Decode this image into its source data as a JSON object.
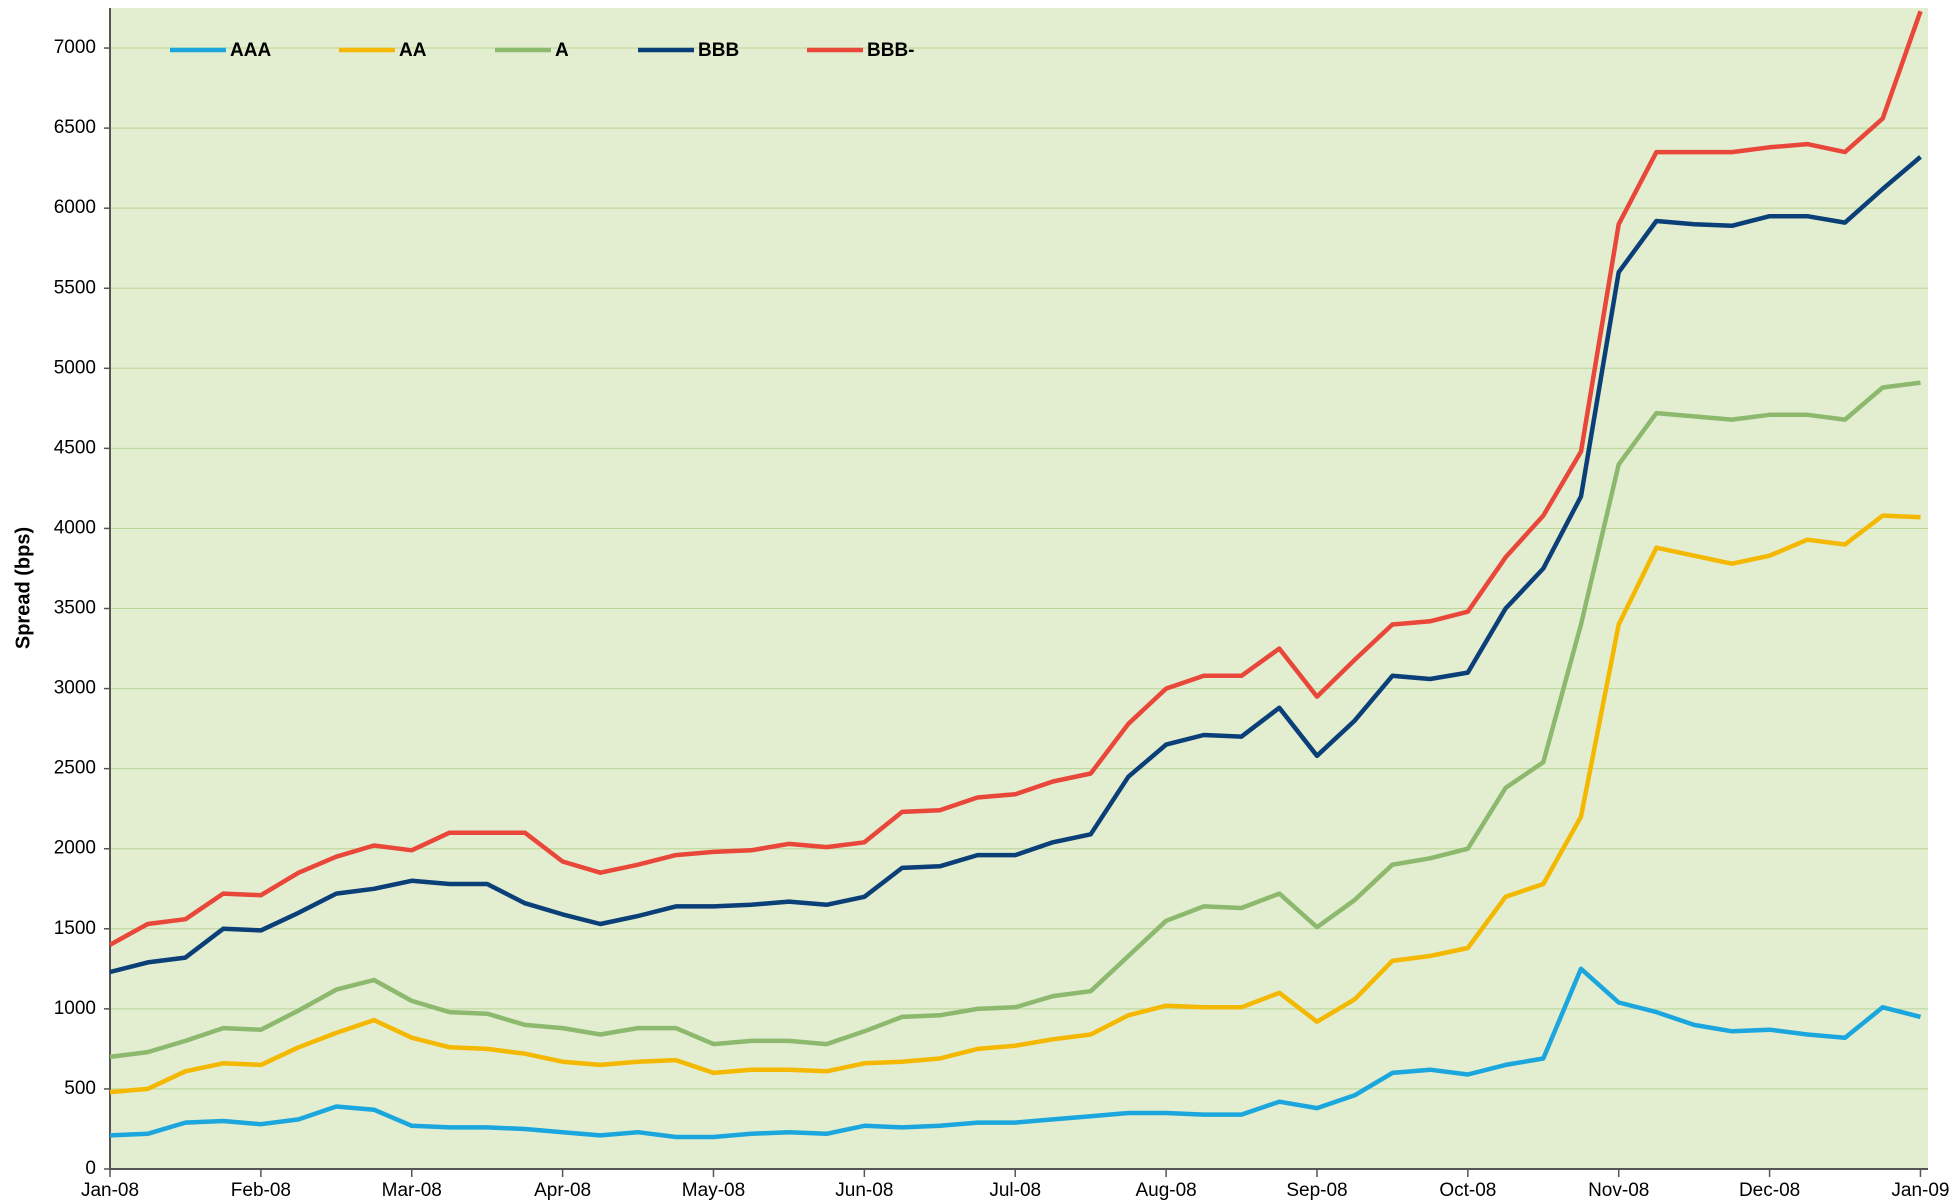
{
  "chart_data": {
    "type": "line",
    "y_label": "Spread (bps)",
    "x": [
      0,
      0.25,
      0.5,
      0.75,
      1,
      1.25,
      1.5,
      1.75,
      2,
      2.25,
      2.5,
      2.75,
      3,
      3.25,
      3.5,
      3.75,
      4,
      4.25,
      4.5,
      4.75,
      5,
      5.25,
      5.5,
      5.75,
      6,
      6.25,
      6.5,
      6.75,
      7,
      7.25,
      7.5,
      7.75,
      8,
      8.25,
      8.5,
      8.75,
      9,
      9.25,
      9.5,
      9.75,
      10,
      10.25,
      10.5,
      10.75,
      11,
      11.25,
      11.5,
      11.75,
      12
    ],
    "xlim": [
      0,
      12.05
    ],
    "xticks": [
      {
        "value": 0,
        "label": "Jan-08"
      },
      {
        "value": 1,
        "label": "Feb-08"
      },
      {
        "value": 2,
        "label": "Mar-08"
      },
      {
        "value": 3,
        "label": "Apr-08"
      },
      {
        "value": 4,
        "label": "May-08"
      },
      {
        "value": 5,
        "label": "Jun-08"
      },
      {
        "value": 6,
        "label": "Jul-08"
      },
      {
        "value": 7,
        "label": "Aug-08"
      },
      {
        "value": 8,
        "label": "Sep-08"
      },
      {
        "value": 9,
        "label": "Oct-08"
      },
      {
        "value": 10,
        "label": "Nov-08"
      },
      {
        "value": 11,
        "label": "Dec-08"
      },
      {
        "value": 12,
        "label": "Jan-09"
      }
    ],
    "ylim": [
      0,
      7250
    ],
    "yticks": [
      0,
      500,
      1000,
      1500,
      2000,
      2500,
      3000,
      3500,
      4000,
      4500,
      5000,
      5500,
      6000,
      6500,
      7000
    ],
    "grid": true,
    "legend": "top-left",
    "series": [
      {
        "name": "AAA",
        "color": "#1ba6dd",
        "values": [
          210,
          220,
          290,
          300,
          280,
          310,
          390,
          370,
          270,
          260,
          260,
          250,
          230,
          210,
          230,
          200,
          200,
          220,
          230,
          220,
          270,
          260,
          270,
          290,
          290,
          310,
          330,
          350,
          350,
          340,
          340,
          420,
          380,
          460,
          600,
          620,
          590,
          650,
          690,
          1250,
          1040,
          980,
          900,
          860,
          870,
          840,
          820,
          1010,
          950
        ]
      },
      {
        "name": "AA",
        "color": "#f4b800",
        "values": [
          480,
          500,
          610,
          660,
          650,
          760,
          850,
          930,
          820,
          760,
          750,
          720,
          670,
          650,
          670,
          680,
          600,
          620,
          620,
          610,
          660,
          670,
          690,
          750,
          770,
          810,
          840,
          960,
          1020,
          1010,
          1010,
          1100,
          920,
          1060,
          1300,
          1330,
          1380,
          1700,
          1780,
          2200,
          3400,
          3880,
          3830,
          3780,
          3830,
          3930,
          3900,
          4080,
          4070
        ]
      },
      {
        "name": "A",
        "color": "#8cb96e",
        "values": [
          700,
          730,
          800,
          880,
          870,
          990,
          1120,
          1180,
          1050,
          980,
          970,
          900,
          880,
          840,
          880,
          880,
          780,
          800,
          800,
          780,
          860,
          950,
          960,
          1000,
          1010,
          1080,
          1110,
          1330,
          1550,
          1640,
          1630,
          1720,
          1510,
          1680,
          1900,
          1940,
          2000,
          2380,
          2540,
          3400,
          4400,
          4720,
          4700,
          4680,
          4710,
          4710,
          4680,
          4880,
          4910
        ]
      },
      {
        "name": "BBB",
        "color": "#0b3f78",
        "values": [
          1230,
          1290,
          1320,
          1500,
          1490,
          1600,
          1720,
          1750,
          1800,
          1780,
          1780,
          1660,
          1590,
          1530,
          1580,
          1640,
          1640,
          1650,
          1670,
          1650,
          1700,
          1880,
          1890,
          1960,
          1960,
          2040,
          2090,
          2450,
          2650,
          2710,
          2700,
          2880,
          2580,
          2800,
          3080,
          3060,
          3100,
          3500,
          3750,
          4200,
          5600,
          5920,
          5900,
          5890,
          5950,
          5950,
          5910,
          6120,
          6320
        ]
      },
      {
        "name": "BBB-",
        "color": "#e8473a",
        "values": [
          1400,
          1530,
          1560,
          1720,
          1710,
          1850,
          1950,
          2020,
          1990,
          2100,
          2100,
          2100,
          1920,
          1850,
          1900,
          1960,
          1980,
          1990,
          2030,
          2010,
          2040,
          2230,
          2240,
          2320,
          2340,
          2420,
          2470,
          2780,
          3000,
          3080,
          3080,
          3250,
          2950,
          3180,
          3400,
          3420,
          3480,
          3820,
          4080,
          4480,
          5900,
          6350,
          6350,
          6350,
          6380,
          6400,
          6350,
          6560,
          7230
        ]
      }
    ]
  }
}
